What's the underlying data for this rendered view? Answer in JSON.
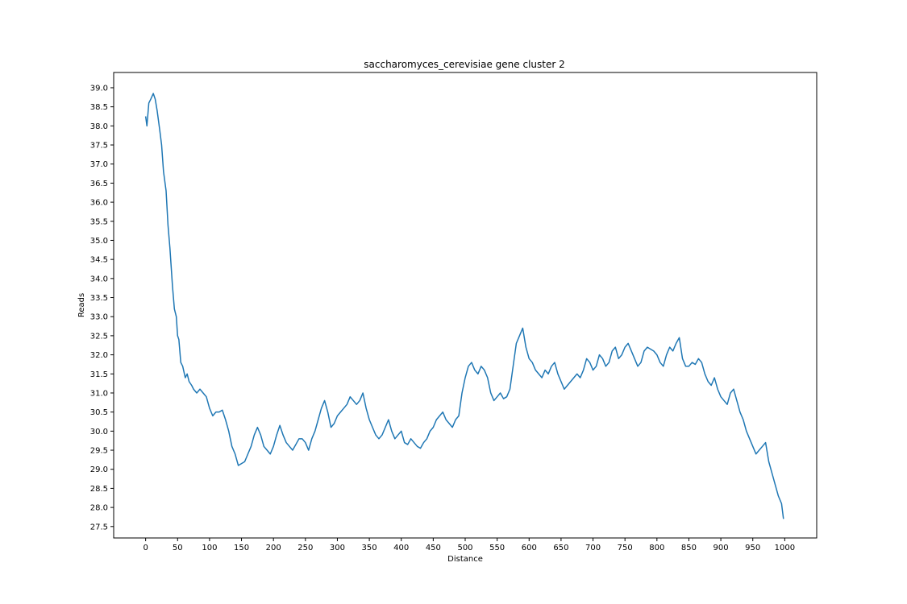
{
  "chart_data": {
    "type": "line",
    "title": "saccharomyces_cerevisiae gene cluster 2",
    "xlabel": "Distance",
    "ylabel": "Reads",
    "xlim": [
      -50,
      1050
    ],
    "ylim": [
      27.2,
      39.4
    ],
    "xticks": [
      0,
      50,
      100,
      150,
      200,
      250,
      300,
      350,
      400,
      450,
      500,
      550,
      600,
      650,
      700,
      750,
      800,
      850,
      900,
      950,
      1000
    ],
    "yticks": [
      27.5,
      28.0,
      28.5,
      29.0,
      29.5,
      30.0,
      30.5,
      31.0,
      31.5,
      32.0,
      32.5,
      33.0,
      33.5,
      34.0,
      34.5,
      35.0,
      35.5,
      36.0,
      36.5,
      37.0,
      37.5,
      38.0,
      38.5,
      39.0
    ],
    "grid": false,
    "series": [
      {
        "color": "#1f77b4",
        "x": [
          0,
          2,
          5,
          8,
          12,
          15,
          18,
          22,
          25,
          28,
          32,
          35,
          38,
          42,
          45,
          48,
          50,
          52,
          55,
          58,
          62,
          65,
          68,
          72,
          75,
          80,
          85,
          90,
          95,
          100,
          105,
          110,
          115,
          120,
          125,
          130,
          135,
          140,
          145,
          150,
          155,
          160,
          165,
          170,
          175,
          180,
          185,
          190,
          195,
          200,
          205,
          210,
          215,
          220,
          225,
          230,
          235,
          240,
          245,
          250,
          255,
          260,
          265,
          270,
          275,
          280,
          285,
          290,
          295,
          300,
          305,
          310,
          315,
          320,
          325,
          330,
          335,
          340,
          345,
          350,
          355,
          360,
          365,
          370,
          375,
          380,
          385,
          390,
          395,
          400,
          405,
          410,
          415,
          420,
          425,
          430,
          435,
          440,
          445,
          450,
          455,
          460,
          465,
          470,
          475,
          480,
          485,
          490,
          495,
          500,
          505,
          510,
          515,
          520,
          525,
          530,
          535,
          540,
          545,
          550,
          555,
          560,
          565,
          570,
          575,
          580,
          585,
          590,
          595,
          600,
          605,
          610,
          615,
          620,
          625,
          630,
          635,
          640,
          645,
          650,
          655,
          660,
          665,
          670,
          675,
          680,
          685,
          690,
          695,
          700,
          705,
          710,
          715,
          720,
          725,
          730,
          735,
          740,
          745,
          750,
          755,
          760,
          765,
          770,
          775,
          780,
          785,
          790,
          795,
          800,
          805,
          810,
          815,
          820,
          825,
          830,
          835,
          840,
          845,
          850,
          855,
          860,
          865,
          870,
          875,
          880,
          885,
          890,
          895,
          900,
          905,
          910,
          915,
          920,
          925,
          930,
          935,
          940,
          945,
          950,
          955,
          960,
          965,
          970,
          975,
          980,
          985,
          990,
          995,
          998
        ],
        "y": [
          38.25,
          38.0,
          38.6,
          38.7,
          38.85,
          38.7,
          38.4,
          37.9,
          37.5,
          36.8,
          36.3,
          35.4,
          34.8,
          33.8,
          33.2,
          33.0,
          32.5,
          32.4,
          31.8,
          31.7,
          31.4,
          31.5,
          31.3,
          31.2,
          31.1,
          31.0,
          31.1,
          31.0,
          30.9,
          30.6,
          30.4,
          30.5,
          30.5,
          30.55,
          30.3,
          30.0,
          29.6,
          29.4,
          29.1,
          29.15,
          29.2,
          29.4,
          29.6,
          29.9,
          30.1,
          29.9,
          29.6,
          29.5,
          29.4,
          29.6,
          29.9,
          30.15,
          29.9,
          29.7,
          29.6,
          29.5,
          29.65,
          29.8,
          29.8,
          29.7,
          29.5,
          29.8,
          30.0,
          30.3,
          30.6,
          30.8,
          30.5,
          30.1,
          30.2,
          30.4,
          30.5,
          30.6,
          30.7,
          30.9,
          30.8,
          30.7,
          30.8,
          31.0,
          30.6,
          30.3,
          30.1,
          29.9,
          29.8,
          29.9,
          30.1,
          30.3,
          30.0,
          29.8,
          29.9,
          30.0,
          29.7,
          29.65,
          29.8,
          29.7,
          29.6,
          29.55,
          29.7,
          29.8,
          30.0,
          30.1,
          30.3,
          30.4,
          30.5,
          30.3,
          30.2,
          30.1,
          30.3,
          30.4,
          31.0,
          31.4,
          31.7,
          31.8,
          31.6,
          31.5,
          31.7,
          31.6,
          31.4,
          31.0,
          30.8,
          30.9,
          31.0,
          30.85,
          30.9,
          31.1,
          31.7,
          32.3,
          32.5,
          32.7,
          32.2,
          31.9,
          31.8,
          31.6,
          31.5,
          31.4,
          31.6,
          31.5,
          31.7,
          31.8,
          31.5,
          31.3,
          31.1,
          31.2,
          31.3,
          31.4,
          31.5,
          31.4,
          31.6,
          31.9,
          31.8,
          31.6,
          31.7,
          32.0,
          31.9,
          31.7,
          31.8,
          32.1,
          32.2,
          31.9,
          32.0,
          32.2,
          32.3,
          32.1,
          31.9,
          31.7,
          31.8,
          32.1,
          32.2,
          32.15,
          32.1,
          32.0,
          31.8,
          31.7,
          32.0,
          32.2,
          32.1,
          32.3,
          32.45,
          31.9,
          31.7,
          31.7,
          31.8,
          31.75,
          31.9,
          31.8,
          31.5,
          31.3,
          31.2,
          31.4,
          31.1,
          30.9,
          30.8,
          30.7,
          31.0,
          31.1,
          30.8,
          30.5,
          30.3,
          30.0,
          29.8,
          29.6,
          29.4,
          29.5,
          29.6,
          29.7,
          29.2,
          28.9,
          28.6,
          28.3,
          28.1,
          27.7
        ]
      }
    ]
  }
}
